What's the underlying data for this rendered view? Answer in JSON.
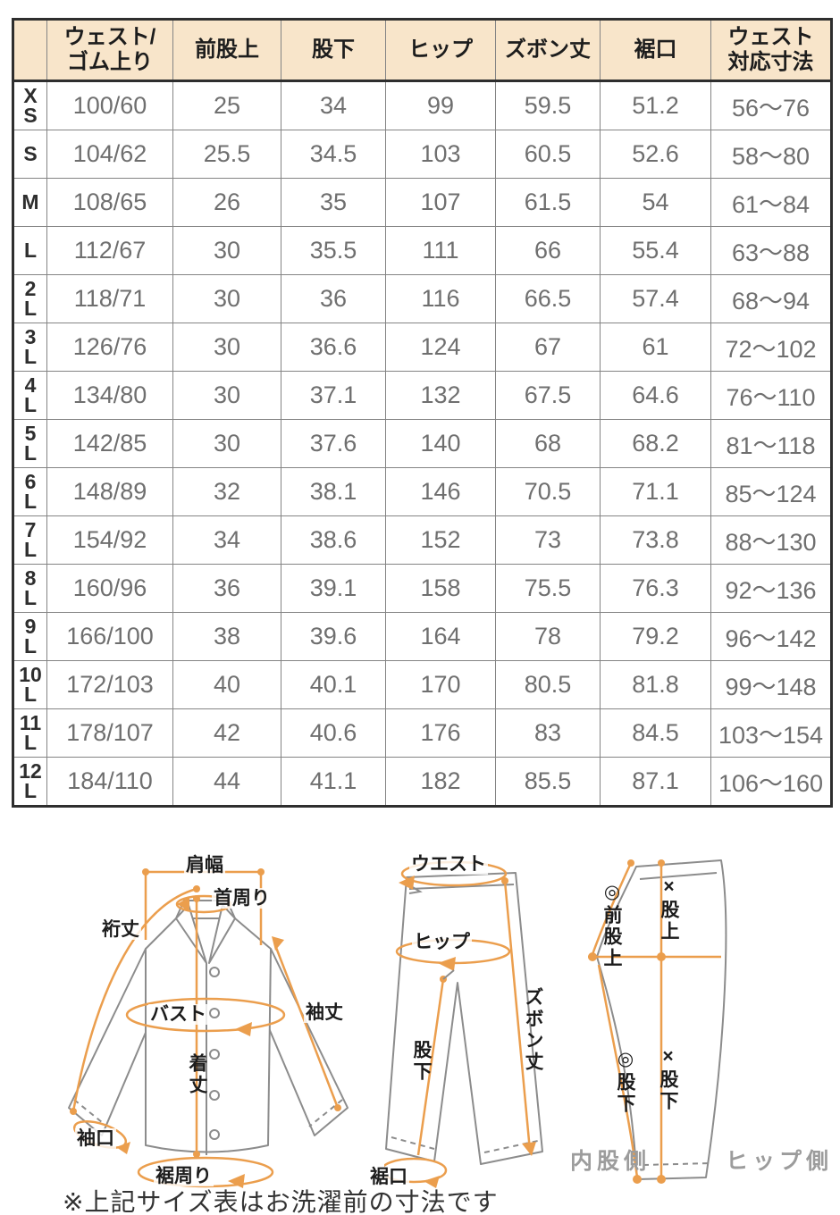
{
  "table": {
    "header": [
      [
        ""
      ],
      [
        "ウェスト/",
        "ゴム上り"
      ],
      [
        "前股上"
      ],
      [
        "股下"
      ],
      [
        "ヒップ"
      ],
      [
        "ズボン丈"
      ],
      [
        "裾口"
      ],
      [
        "ウェスト",
        "対応寸法"
      ]
    ],
    "rows": [
      [
        "XS",
        "100/60",
        "25",
        "34",
        "99",
        "59.5",
        "51.2",
        "56〜76"
      ],
      [
        "S",
        "104/62",
        "25.5",
        "34.5",
        "103",
        "60.5",
        "52.6",
        "58〜80"
      ],
      [
        "M",
        "108/65",
        "26",
        "35",
        "107",
        "61.5",
        "54",
        "61〜84"
      ],
      [
        "L",
        "112/67",
        "30",
        "35.5",
        "111",
        "66",
        "55.4",
        "63〜88"
      ],
      [
        "2L",
        "118/71",
        "30",
        "36",
        "116",
        "66.5",
        "57.4",
        "68〜94"
      ],
      [
        "3L",
        "126/76",
        "30",
        "36.6",
        "124",
        "67",
        "61",
        "72〜102"
      ],
      [
        "4L",
        "134/80",
        "30",
        "37.1",
        "132",
        "67.5",
        "64.6",
        "76〜110"
      ],
      [
        "5L",
        "142/85",
        "30",
        "37.6",
        "140",
        "68",
        "68.2",
        "81〜118"
      ],
      [
        "6L",
        "148/89",
        "32",
        "38.1",
        "146",
        "70.5",
        "71.1",
        "85〜124"
      ],
      [
        "7L",
        "154/92",
        "34",
        "38.6",
        "152",
        "73",
        "73.8",
        "88〜130"
      ],
      [
        "8L",
        "160/96",
        "36",
        "39.1",
        "158",
        "75.5",
        "76.3",
        "92〜136"
      ],
      [
        "9L",
        "166/100",
        "38",
        "39.6",
        "164",
        "78",
        "79.2",
        "96〜142"
      ],
      [
        "10L",
        "172/103",
        "40",
        "40.1",
        "170",
        "80.5",
        "81.8",
        "99〜148"
      ],
      [
        "11L",
        "178/107",
        "42",
        "40.6",
        "176",
        "83",
        "84.5",
        "103〜154"
      ],
      [
        "12L",
        "184/110",
        "44",
        "41.1",
        "182",
        "85.5",
        "87.1",
        "106〜160"
      ]
    ]
  },
  "diagrams": {
    "shirt": {
      "shoulder_width": "肩幅",
      "neck_around": "首周り",
      "sleeve_reach": "裄丈",
      "bust": "バスト",
      "sleeve_length": "袖丈",
      "body_length": "着丈",
      "cuff_opening": "袖口",
      "hem_around": "裾周り"
    },
    "pants_front": {
      "waist": "ウエスト",
      "hip": "ヒップ",
      "pants_length": "ズボン丈",
      "inseam": "股下",
      "hem_opening": "裾口"
    },
    "pants_side": {
      "front_rise": "◎前股上",
      "rise": "×股上",
      "inseam_a": "◎股下",
      "inseam_b": "×股下",
      "inner_side": "内股側",
      "hip_side": "ヒップ側"
    }
  },
  "note": "※上記サイズ表はお洗濯前の寸法です",
  "colors": {
    "header_bg": "#f8e5ca",
    "accent_orange": "#eb9e4d",
    "outer_border": "#2e2e2e",
    "grid_line": "#848484",
    "value_text": "#6f6f6f",
    "label_text": "#1d1d1d",
    "garment_outline": "#8c8c8c",
    "side_label_text": "#9c9c9c"
  }
}
